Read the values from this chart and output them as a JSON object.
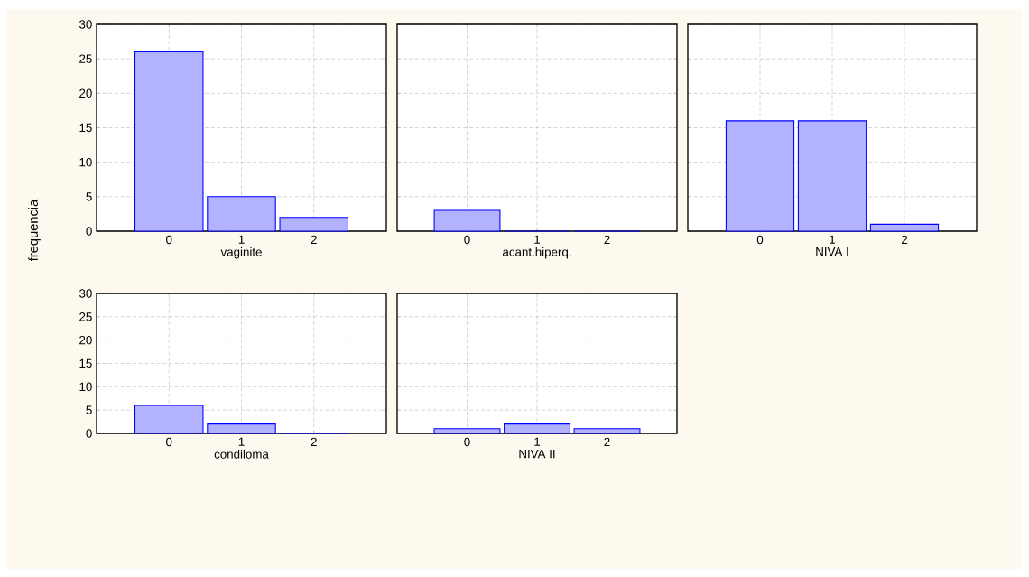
{
  "chart_data": [
    {
      "type": "bar",
      "categories": [
        "0",
        "1",
        "2"
      ],
      "values": [
        26,
        5,
        2
      ],
      "xlabel": "vaginite",
      "ylabel": "frequencia",
      "color": "#0000ff",
      "ylim": [
        0,
        30
      ],
      "yticks": [
        0,
        5,
        10,
        15,
        20,
        25,
        30
      ],
      "grid": true
    },
    {
      "type": "bar",
      "categories": [
        "0",
        "1",
        "2"
      ],
      "values": [
        3,
        0,
        0
      ],
      "xlabel": "acant.hiperq.",
      "color": "#0000ff",
      "ylim": [
        0,
        30
      ],
      "yticks": [
        0,
        5,
        10,
        15,
        20,
        25,
        30
      ],
      "grid": true,
      "tick_labels": "x"
    },
    {
      "type": "bar",
      "categories": [
        "0",
        "1",
        "2"
      ],
      "values": [
        16,
        16,
        1
      ],
      "xlabel": "NIVA I",
      "color": "#0000ff",
      "ylim": [
        0,
        30
      ],
      "yticks": [
        0,
        5,
        10,
        15,
        20,
        25,
        30
      ],
      "grid": true,
      "tick_labels": "x"
    },
    {
      "type": "bar",
      "categories": [
        "0",
        "1",
        "2"
      ],
      "values": [
        6,
        2,
        0
      ],
      "xlabel": "condiloma",
      "color": "#0000ff",
      "ylim": [
        0,
        30
      ],
      "yticks": [
        0,
        5,
        10,
        15,
        20,
        25,
        30
      ],
      "grid": true
    },
    {
      "type": "bar",
      "categories": [
        "0",
        "1",
        "2"
      ],
      "values": [
        1,
        2,
        1
      ],
      "xlabel": "NIVA II",
      "color": "#0000ff",
      "ylim": [
        0,
        30
      ],
      "yticks": [
        0,
        5,
        10,
        15,
        20,
        25,
        30
      ],
      "grid": true,
      "tick_labels": "x"
    }
  ]
}
